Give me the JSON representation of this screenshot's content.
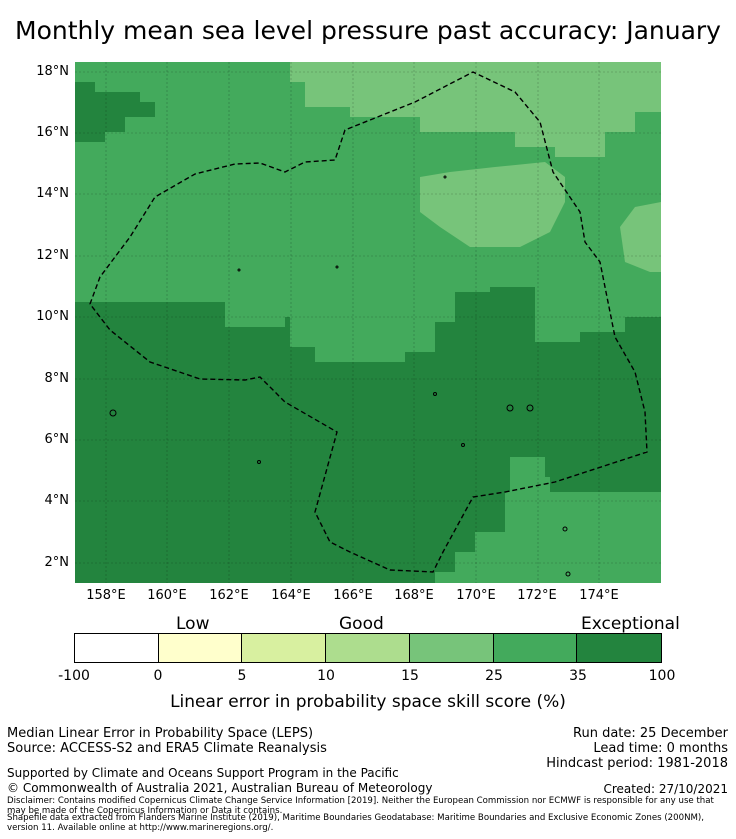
{
  "title": "Monthly mean sea level pressure past accuracy: January",
  "map": {
    "lat_labels": [
      "18°N",
      "16°N",
      "14°N",
      "12°N",
      "10°N",
      "8°N",
      "6°N",
      "4°N",
      "2°N"
    ],
    "lon_labels": [
      "158°E",
      "160°E",
      "162°E",
      "164°E",
      "166°E",
      "168°E",
      "170°E",
      "172°E",
      "174°E"
    ],
    "lon_range": [
      157,
      176
    ],
    "lat_range": [
      1.4,
      18.4
    ],
    "region_colors": {
      "good_25_35": "#43aa5c",
      "exceptional_35_100": "#23843e",
      "good_15_25": "#77c47a"
    }
  },
  "colorbar": {
    "headings": {
      "low": "Low",
      "good": "Good",
      "exceptional": "Exceptional"
    },
    "segments": [
      {
        "from": -100,
        "to": 0,
        "color": "#ffffff"
      },
      {
        "from": 0,
        "to": 5,
        "color": "#ffffcc"
      },
      {
        "from": 5,
        "to": 10,
        "color": "#d8f0a0"
      },
      {
        "from": 10,
        "to": 15,
        "color": "#addd8e"
      },
      {
        "from": 15,
        "to": 25,
        "color": "#77c47a"
      },
      {
        "from": 25,
        "to": 35,
        "color": "#43aa5c"
      },
      {
        "from": 35,
        "to": 100,
        "color": "#23843e"
      }
    ],
    "tick_labels": [
      "-100",
      "0",
      "5",
      "10",
      "15",
      "25",
      "35",
      "100"
    ],
    "title": "Linear error in probability space skill score (%)"
  },
  "info": {
    "line1": "Median Linear Error in Probability Space (LEPS)",
    "line2": "Source: ACCESS-S2 and ERA5 Climate Reanalysis",
    "run_date": "Run date: 25 December",
    "lead_time": "Lead time: 0 months",
    "hindcast": "Hindcast period: 1981-2018",
    "support": "Supported by Climate and Oceans Support Program in the Pacific",
    "copyright": "© Commonwealth of Australia 2021, Australian Bureau of Meteorology",
    "created": "Created: 27/10/2021",
    "disclaimer": "Disclaimer: Contains modified Copernicus Climate Change Service Information [2019]. Neither the European Commission nor ECMWF is responsible for any use that may be made of the Copernicus Information or Data it contains.",
    "shapefile": "Shapefile data extracted from Flanders Marine Institute (2019), Maritime Boundaries Geodatabase: Maritime Boundaries and Exclusive Economic Zones (200NM), version 11. Available online at http://www.marineregions.org/."
  }
}
